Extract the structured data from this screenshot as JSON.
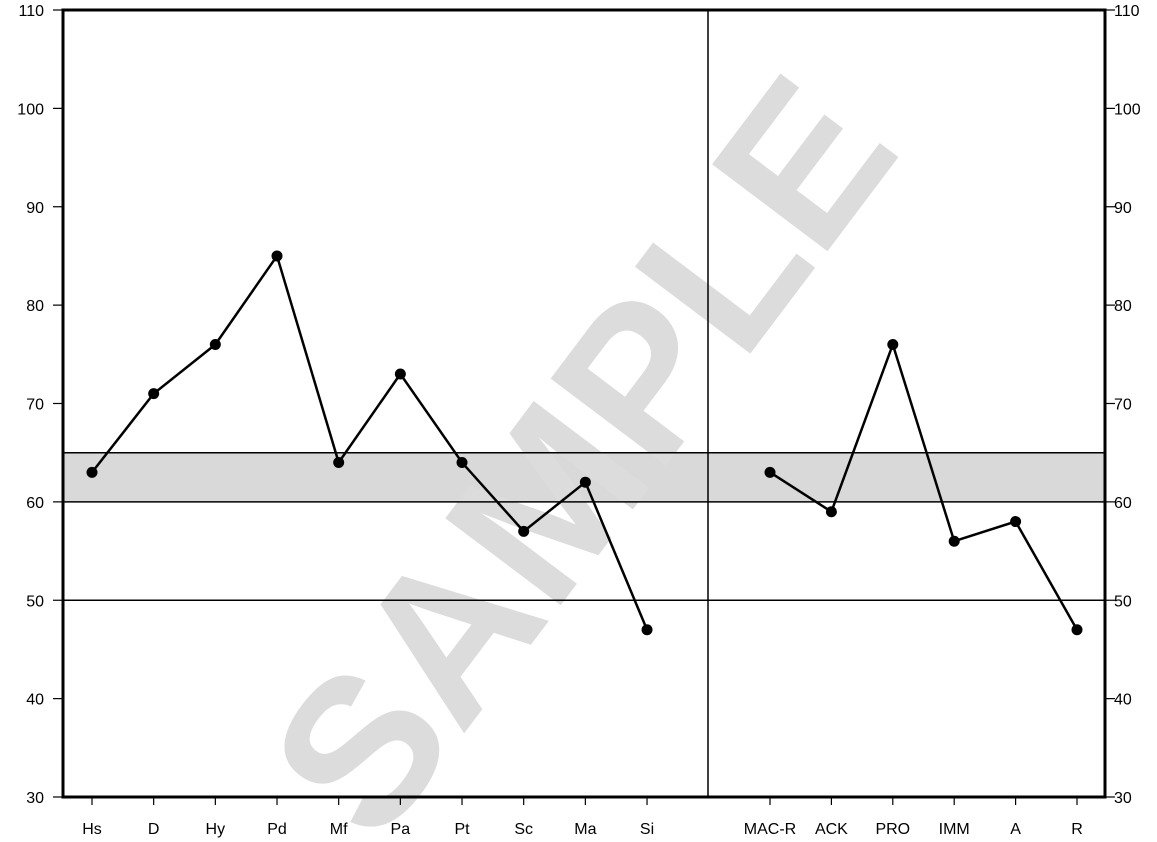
{
  "chart_data": {
    "type": "line",
    "title": "",
    "xlabel": "",
    "ylabel": "",
    "ylim": [
      30,
      110
    ],
    "yticks": [
      30,
      40,
      50,
      60,
      70,
      80,
      90,
      100,
      110
    ],
    "y_axis_both_sides": true,
    "grid": false,
    "legend": "none",
    "reference_band": {
      "from": 60,
      "to": 65,
      "color": "#d9d9d9"
    },
    "reference_lines": [
      50,
      60,
      65
    ],
    "line_color": "#000000",
    "panels": [
      {
        "name": "",
        "categories": [
          "Hs",
          "D",
          "Hy",
          "Pd",
          "Mf",
          "Pa",
          "Pt",
          "Sc",
          "Ma",
          "Si"
        ],
        "values": [
          63,
          71,
          76,
          85,
          64,
          73,
          64,
          57,
          62,
          47
        ]
      },
      {
        "name": "",
        "categories": [
          "MAC-R",
          "ACK",
          "PRO",
          "IMM",
          "A",
          "R"
        ],
        "values": [
          63,
          59,
          76,
          56,
          58,
          47
        ]
      }
    ],
    "watermark": "SAMPLE"
  }
}
